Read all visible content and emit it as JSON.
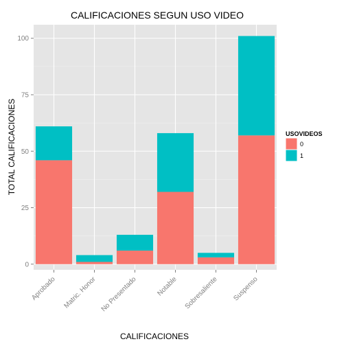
{
  "chart_data": {
    "type": "bar",
    "stacked": true,
    "title": "CALIFICACIONES SEGUN USO VIDEO",
    "xlabel": "CALIFICACIONES",
    "ylabel": "TOTAL CALIFICACIONES",
    "categories": [
      "Aprobado",
      "Matric. Honor",
      "No Presentado",
      "Notable",
      "Sobresaliente",
      "Suspenso"
    ],
    "series": [
      {
        "name": "0",
        "values": [
          46,
          1,
          6,
          32,
          3,
          57
        ],
        "color": "#F8766D"
      },
      {
        "name": "1",
        "values": [
          15,
          3,
          7,
          26,
          2,
          44
        ],
        "color": "#00BFC4"
      }
    ],
    "ylim": [
      -2.5,
      106
    ],
    "yticks": [
      0,
      25,
      50,
      75,
      100
    ],
    "grid": true,
    "panel_background": "#E5E5E5",
    "legend": {
      "title": "USOVIDEOS",
      "position": "right"
    }
  }
}
